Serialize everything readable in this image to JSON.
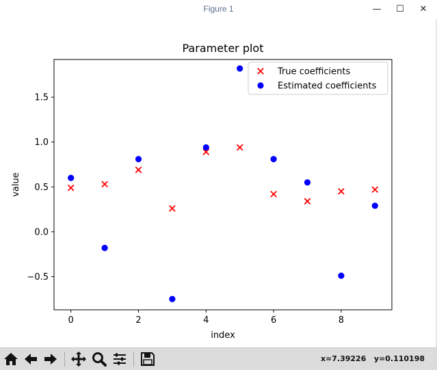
{
  "window": {
    "title": "Figure 1",
    "minimize_glyph": "—",
    "maximize_glyph": "☐",
    "close_glyph": "✕"
  },
  "toolbar": {
    "buttons": [
      {
        "name": "home-icon"
      },
      {
        "name": "back-arrow-icon"
      },
      {
        "name": "forward-arrow-icon"
      },
      {
        "name": "pan-icon"
      },
      {
        "name": "zoom-icon"
      },
      {
        "name": "configure-subplots-icon"
      },
      {
        "name": "save-icon"
      }
    ],
    "coords_text": "x=7.39226   y=0.110198"
  },
  "chart_data": {
    "type": "scatter",
    "title": "Parameter plot",
    "xlabel": "index",
    "ylabel": "value",
    "xlim": [
      -0.5,
      9.5
    ],
    "ylim": [
      -0.87,
      1.92
    ],
    "xticks": [
      0,
      2,
      4,
      6,
      8
    ],
    "xtick_labels": [
      "0",
      "2",
      "4",
      "6",
      "8"
    ],
    "yticks": [
      -0.5,
      0.0,
      0.5,
      1.0,
      1.5
    ],
    "ytick_labels": [
      "−0.5",
      "0.0",
      "0.5",
      "1.0",
      "1.5"
    ],
    "legend_position": "top-right",
    "grid": false,
    "series": [
      {
        "name": "True coefficients",
        "marker": "x",
        "color": "#ff0000",
        "x": [
          0,
          1,
          2,
          3,
          4,
          5,
          6,
          7,
          8,
          9
        ],
        "y": [
          0.49,
          0.53,
          0.69,
          0.26,
          0.89,
          0.94,
          0.42,
          0.34,
          0.45,
          0.47
        ]
      },
      {
        "name": "Estimated coefficients",
        "marker": "o",
        "color": "#0000ff",
        "x": [
          0,
          1,
          2,
          3,
          4,
          5,
          6,
          7,
          8,
          9
        ],
        "y": [
          0.6,
          -0.18,
          0.81,
          -0.75,
          0.94,
          1.82,
          0.81,
          0.55,
          -0.49,
          0.29
        ]
      }
    ]
  }
}
